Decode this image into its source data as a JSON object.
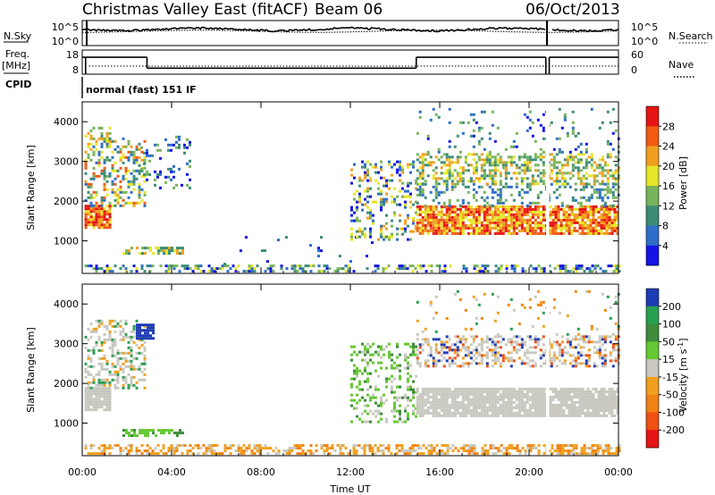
{
  "header": {
    "title": "Christmas Valley East (fitACF)",
    "beam": "Beam 06",
    "date": "06/Oct/2013"
  },
  "noise_panel": {
    "left_label": "N.Sky",
    "right_label": "N.Search",
    "left_ticks": [
      "10^5",
      "10^0"
    ],
    "right_ticks": [
      "10^5",
      "10^0"
    ]
  },
  "freq_panel": {
    "left_label_1": "Freq.",
    "left_label_2": "[MHz]",
    "right_label": "Nave",
    "left_ticks": [
      "18",
      "8"
    ],
    "right_ticks": [
      "60",
      "0"
    ],
    "freq_high": 15,
    "freq_low": 10.5,
    "nave_level": 20,
    "freq_segments": [
      {
        "t0": 0,
        "t1": 2.9,
        "level": "high"
      },
      {
        "t0": 2.9,
        "t1": 14.95,
        "level": "low"
      },
      {
        "t0": 14.95,
        "t1": 20.75,
        "level": "high"
      },
      {
        "t0": 20.9,
        "t1": 24,
        "level": "high"
      }
    ]
  },
  "cpid": {
    "label": "CPID",
    "program": "normal (fast) 151 IF"
  },
  "chart_data": [
    {
      "type": "heatmap",
      "name": "power",
      "ylabel": "Slant Range [km]",
      "xlabel": "",
      "yticks": [
        1000,
        2000,
        3000,
        4000
      ],
      "ylim": [
        180,
        4500
      ],
      "xlim": [
        0,
        24
      ],
      "xticks": [
        "00:00",
        "04:00",
        "08:00",
        "12:00",
        "16:00",
        "20:00",
        "00:00"
      ],
      "colorbar": {
        "label": "Power [dB]",
        "ticks": [
          "4",
          "8",
          "12",
          "16",
          "20",
          "24",
          "28"
        ],
        "colors": [
          "#1414e6",
          "#2d6ec8",
          "#3c8c78",
          "#78b45a",
          "#e6e628",
          "#f0a01e",
          "#f05a14",
          "#e61414"
        ]
      },
      "regions": [
        {
          "t0": 0.1,
          "t1": 24,
          "r0": 200,
          "r1": 380,
          "c": [
            0,
            1,
            2,
            3,
            4
          ],
          "d": 0.45
        },
        {
          "t0": 0.1,
          "t1": 1.2,
          "r0": 1300,
          "r1": 1850,
          "c": [
            4,
            5,
            6,
            7
          ],
          "d": 0.9
        },
        {
          "t0": 0.1,
          "t1": 2.8,
          "r0": 1850,
          "r1": 3600,
          "c": [
            1,
            2,
            3,
            4,
            5,
            6
          ],
          "d": 0.35
        },
        {
          "t0": 0.1,
          "t1": 1.3,
          "r0": 3400,
          "r1": 3900,
          "c": [
            2,
            3,
            4,
            5
          ],
          "d": 0.35
        },
        {
          "t0": 1.8,
          "t1": 4.5,
          "r0": 650,
          "r1": 850,
          "c": [
            2,
            3,
            4,
            5
          ],
          "d": 0.6
        },
        {
          "t0": 2.6,
          "t1": 4.8,
          "r0": 2300,
          "r1": 3600,
          "c": [
            0,
            1,
            2,
            3
          ],
          "d": 0.15
        },
        {
          "t0": 5,
          "t1": 13,
          "r0": 380,
          "r1": 1100,
          "c": [
            0,
            1,
            2
          ],
          "d": 0.04
        },
        {
          "t0": 12,
          "t1": 14.95,
          "r0": 1000,
          "r1": 3000,
          "c": [
            0,
            1,
            2,
            3,
            4,
            5
          ],
          "d": 0.3
        },
        {
          "t0": 14.95,
          "t1": 20.75,
          "r0": 1150,
          "r1": 1850,
          "c": [
            4,
            5,
            6,
            7
          ],
          "d": 0.85
        },
        {
          "t0": 20.9,
          "t1": 24,
          "r0": 1150,
          "r1": 1850,
          "c": [
            4,
            5,
            6,
            7
          ],
          "d": 0.85
        },
        {
          "t0": 14.95,
          "t1": 24,
          "r0": 1850,
          "r1": 2400,
          "c": [
            1,
            2,
            3
          ],
          "d": 0.25
        },
        {
          "t0": 14.95,
          "t1": 24,
          "r0": 2400,
          "r1": 3200,
          "c": [
            2,
            3,
            4,
            5
          ],
          "d": 0.45
        },
        {
          "t0": 14.95,
          "t1": 24,
          "r0": 3200,
          "r1": 4300,
          "c": [
            0,
            1,
            2,
            3
          ],
          "d": 0.08
        }
      ]
    },
    {
      "type": "heatmap",
      "name": "velocity",
      "ylabel": "Slant Range [km]",
      "xlabel": "Time UT",
      "yticks": [
        1000,
        2000,
        3000,
        4000
      ],
      "ylim": [
        180,
        4500
      ],
      "xlim": [
        0,
        24
      ],
      "xticks": [
        "00:00",
        "04:00",
        "08:00",
        "12:00",
        "16:00",
        "20:00",
        "00:00"
      ],
      "colorbar": {
        "label": "Velocity [m s^-1]",
        "ticks": [
          "200",
          "100",
          "50",
          "15",
          "-15",
          "-50",
          "-100",
          "-200"
        ],
        "colors": [
          "#1e3cb4",
          "#28a050",
          "#3c8c3c",
          "#64c832",
          "#c8c8c0",
          "#f0a01e",
          "#f08214",
          "#f05014",
          "#e61414"
        ]
      },
      "regions": [
        {
          "t0": 0.1,
          "t1": 24,
          "r0": 200,
          "r1": 420,
          "c": [
            5,
            5,
            6,
            4
          ],
          "d": 0.55
        },
        {
          "t0": 0.1,
          "t1": 1.2,
          "r0": 1300,
          "r1": 1850,
          "c": [
            4
          ],
          "d": 0.95
        },
        {
          "t0": 0.1,
          "t1": 2.8,
          "r0": 1850,
          "r1": 3600,
          "c": [
            4,
            4,
            4,
            5,
            1
          ],
          "d": 0.4
        },
        {
          "t0": 2.4,
          "t1": 3.2,
          "r0": 3100,
          "r1": 3500,
          "c": [
            0,
            0,
            0
          ],
          "d": 0.8
        },
        {
          "t0": 1.8,
          "t1": 4.5,
          "r0": 650,
          "r1": 850,
          "c": [
            3,
            3,
            2
          ],
          "d": 0.6
        },
        {
          "t0": 12,
          "t1": 14.95,
          "r0": 1000,
          "r1": 3000,
          "c": [
            3,
            3,
            4,
            2
          ],
          "d": 0.3
        },
        {
          "t0": 14.95,
          "t1": 20.75,
          "r0": 1150,
          "r1": 1850,
          "c": [
            4
          ],
          "d": 0.9
        },
        {
          "t0": 20.9,
          "t1": 24,
          "r0": 1150,
          "r1": 1850,
          "c": [
            4
          ],
          "d": 0.9
        },
        {
          "t0": 14.95,
          "t1": 24,
          "r0": 2400,
          "r1": 3200,
          "c": [
            4,
            4,
            4,
            5,
            7,
            0
          ],
          "d": 0.45
        },
        {
          "t0": 14.95,
          "t1": 24,
          "r0": 3200,
          "r1": 4300,
          "c": [
            4,
            5,
            6,
            1
          ],
          "d": 0.06
        }
      ]
    }
  ]
}
